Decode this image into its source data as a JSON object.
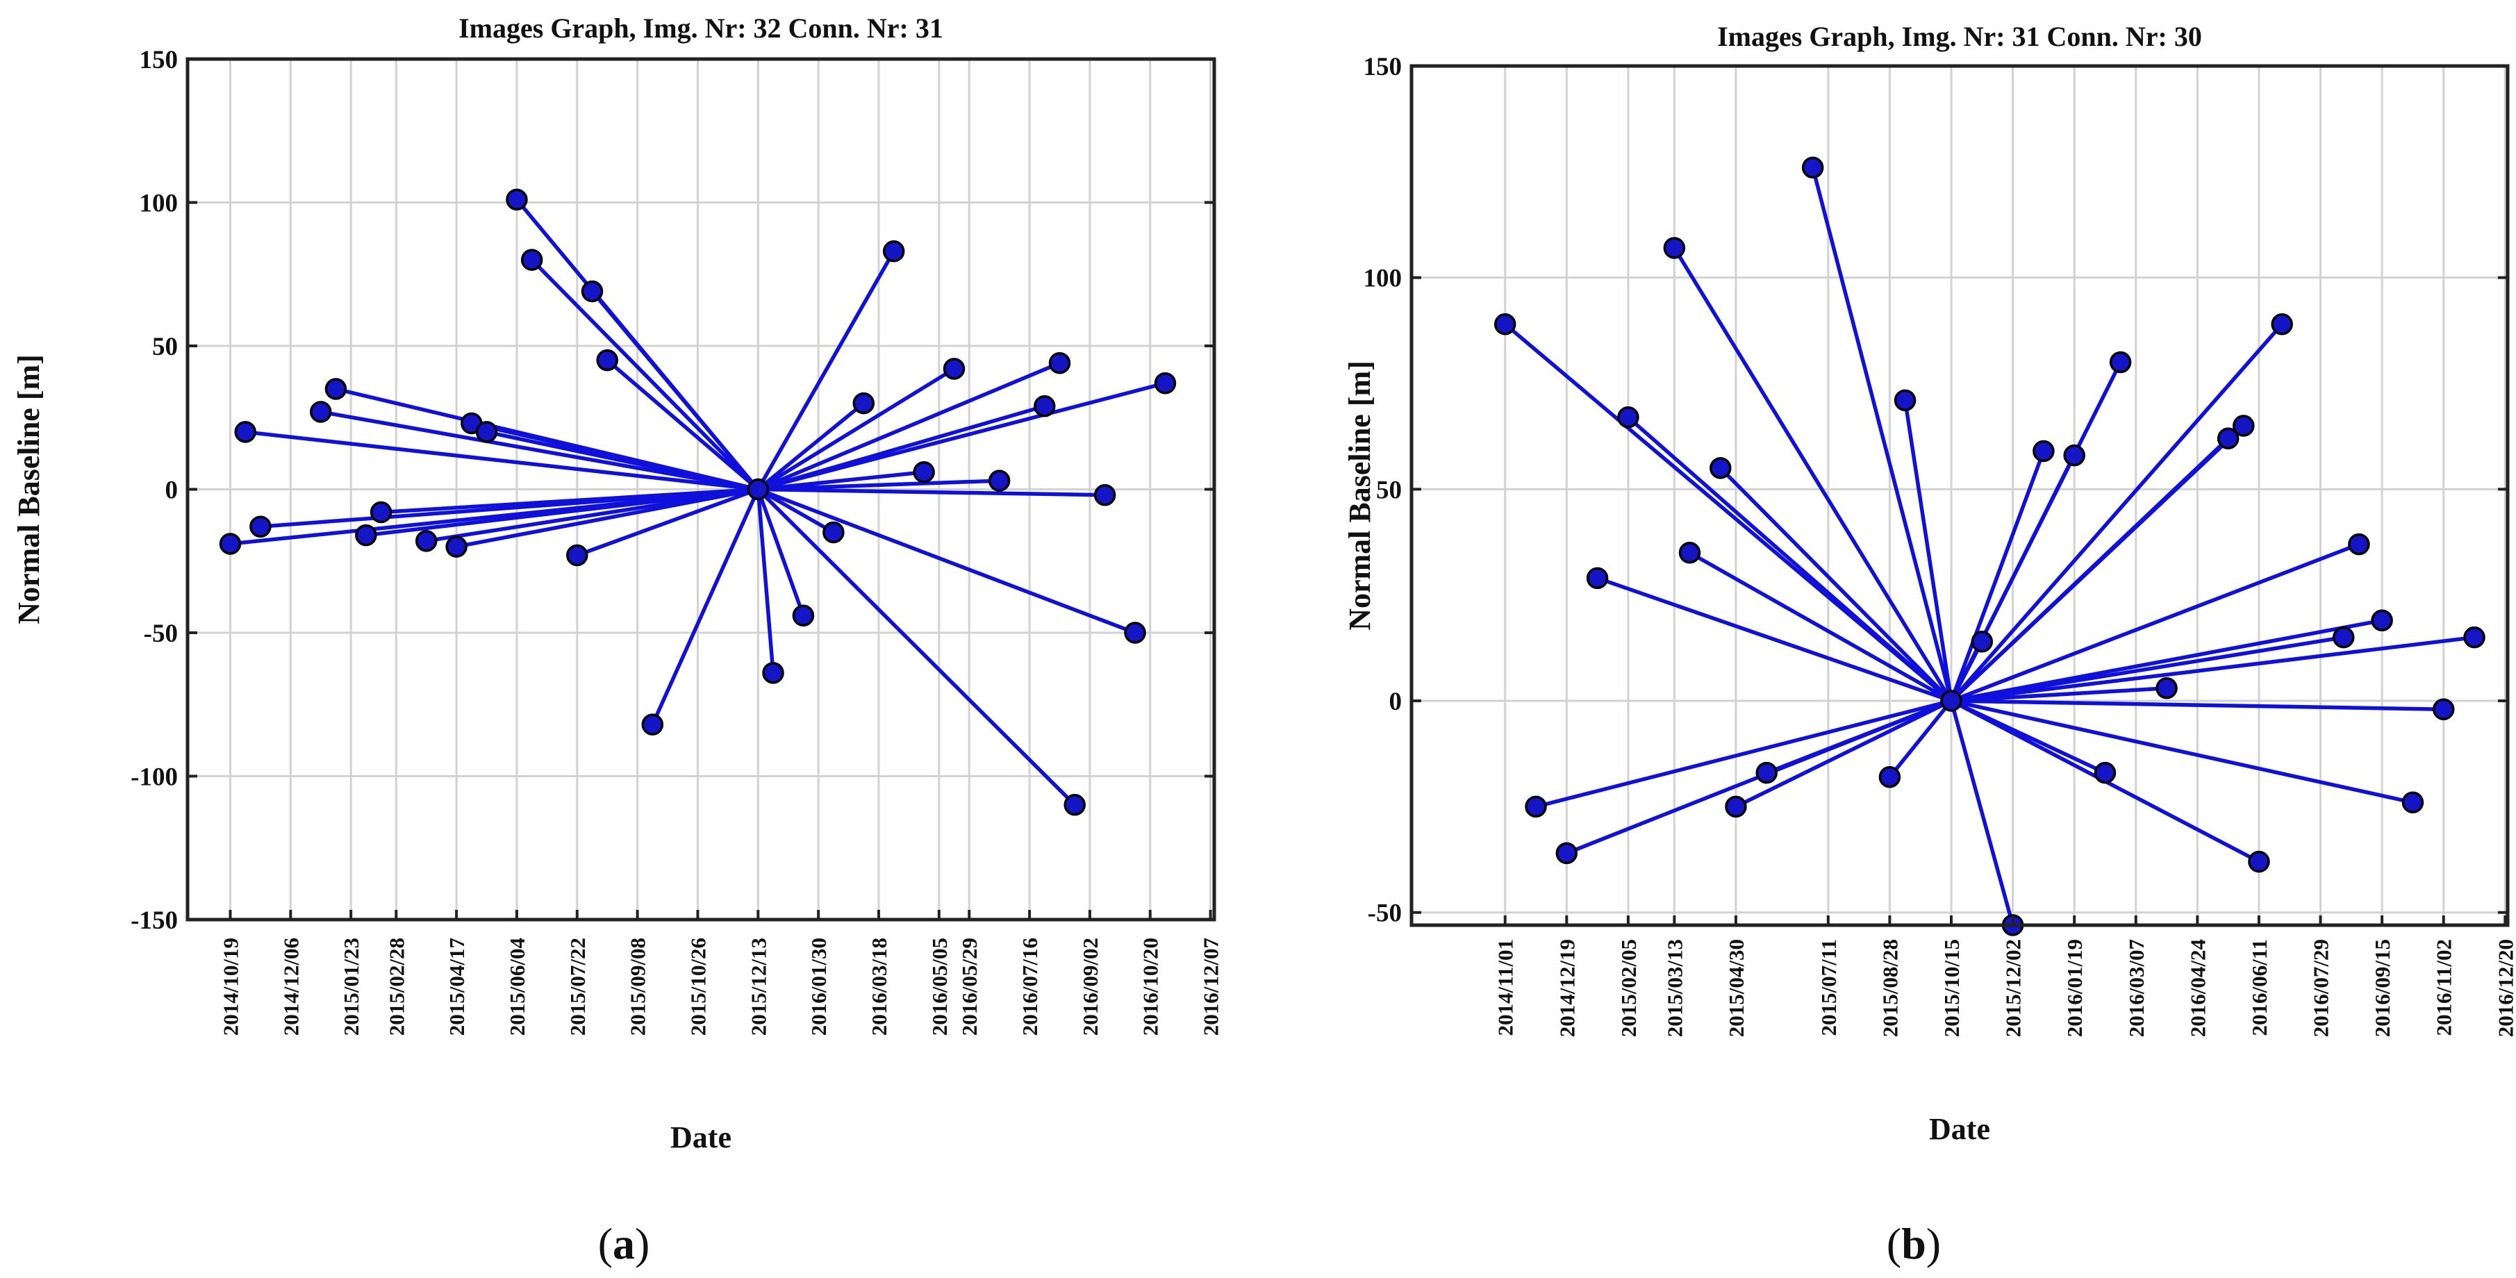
{
  "chart_data": [
    {
      "type": "scatter",
      "subtype": "network-baseline-graph",
      "title": "Images Graph, Img. Nr: 32 Conn. Nr: 31",
      "xlabel": "Date",
      "ylabel": "Normal Baseline [m]",
      "ylim": [
        -150,
        150
      ],
      "yticks": [
        -150,
        -100,
        -50,
        0,
        50,
        100,
        150
      ],
      "xlim": [
        "2014-09-15",
        "2016-12-10"
      ],
      "xticks": [
        "2014/10/19",
        "2014/12/06",
        "2015/01/23",
        "2015/02/28",
        "2015/04/17",
        "2015/06/04",
        "2015/07/22",
        "2015/09/08",
        "2015/10/26",
        "2015/12/13",
        "2016/01/30",
        "2016/03/18",
        "2016/05/05",
        "2016/05/29",
        "2016/07/16",
        "2016/09/02",
        "2016/10/20",
        "2016/12/07"
      ],
      "grid": true,
      "series_color": "#1010dd",
      "marker_color": "#1515c8",
      "hub": {
        "date": "2015-12-13",
        "baseline": 0
      },
      "points": [
        {
          "date": "2014-10-19",
          "baseline": -19
        },
        {
          "date": "2014-10-31",
          "baseline": 20
        },
        {
          "date": "2014-11-12",
          "baseline": -13
        },
        {
          "date": "2014-12-30",
          "baseline": 27
        },
        {
          "date": "2015-01-11",
          "baseline": 35
        },
        {
          "date": "2015-02-04",
          "baseline": -16
        },
        {
          "date": "2015-02-16",
          "baseline": -8
        },
        {
          "date": "2015-03-24",
          "baseline": -18
        },
        {
          "date": "2015-04-17",
          "baseline": -20
        },
        {
          "date": "2015-04-29",
          "baseline": 23
        },
        {
          "date": "2015-05-11",
          "baseline": 20
        },
        {
          "date": "2015-06-04",
          "baseline": 101
        },
        {
          "date": "2015-06-16",
          "baseline": 80
        },
        {
          "date": "2015-07-22",
          "baseline": -23
        },
        {
          "date": "2015-08-03",
          "baseline": 69
        },
        {
          "date": "2015-08-15",
          "baseline": 45
        },
        {
          "date": "2015-09-20",
          "baseline": -82
        },
        {
          "date": "2015-12-25",
          "baseline": -64
        },
        {
          "date": "2016-01-18",
          "baseline": -44
        },
        {
          "date": "2016-02-11",
          "baseline": -15
        },
        {
          "date": "2016-03-06",
          "baseline": 30
        },
        {
          "date": "2016-03-30",
          "baseline": 83
        },
        {
          "date": "2016-04-23",
          "baseline": 6
        },
        {
          "date": "2016-05-17",
          "baseline": 42
        },
        {
          "date": "2016-06-22",
          "baseline": 3
        },
        {
          "date": "2016-07-28",
          "baseline": 29
        },
        {
          "date": "2016-08-09",
          "baseline": 44
        },
        {
          "date": "2016-08-21",
          "baseline": -110
        },
        {
          "date": "2016-09-14",
          "baseline": -2
        },
        {
          "date": "2016-10-08",
          "baseline": -50
        },
        {
          "date": "2016-11-01",
          "baseline": 37
        }
      ]
    },
    {
      "type": "scatter",
      "subtype": "network-baseline-graph",
      "title": "Images Graph, Img. Nr: 31 Conn. Nr: 30",
      "xlabel": "Date",
      "ylabel": "Normal Baseline [m]",
      "ylim": [
        -53,
        150
      ],
      "yticks": [
        -50,
        0,
        50,
        100,
        150
      ],
      "xlim": [
        "2014-08-20",
        "2016-12-22"
      ],
      "xticks": [
        "2014/11/01",
        "2014/12/19",
        "2015/02/05",
        "2015/03/13",
        "2015/04/30",
        "2015/07/11",
        "2015/08/28",
        "2015/10/15",
        "2015/12/02",
        "2016/01/19",
        "2016/03/07",
        "2016/04/24",
        "2016/06/11",
        "2016/07/29",
        "2016/09/15",
        "2016/11/02",
        "2016/12/20"
      ],
      "grid": true,
      "series_color": "#1010dd",
      "marker_color": "#1515c8",
      "hub": {
        "date": "2015-10-15",
        "baseline": 0
      },
      "points": [
        {
          "date": "2014-11-01",
          "baseline": 89
        },
        {
          "date": "2014-11-25",
          "baseline": -25
        },
        {
          "date": "2014-12-19",
          "baseline": -36
        },
        {
          "date": "2015-01-12",
          "baseline": 29
        },
        {
          "date": "2015-02-05",
          "baseline": 67
        },
        {
          "date": "2015-03-13",
          "baseline": 107
        },
        {
          "date": "2015-03-25",
          "baseline": 35
        },
        {
          "date": "2015-04-18",
          "baseline": 55
        },
        {
          "date": "2015-04-30",
          "baseline": -25
        },
        {
          "date": "2015-05-24",
          "baseline": -17
        },
        {
          "date": "2015-06-29",
          "baseline": 126
        },
        {
          "date": "2015-08-28",
          "baseline": -18
        },
        {
          "date": "2015-09-09",
          "baseline": 71
        },
        {
          "date": "2015-11-08",
          "baseline": 14
        },
        {
          "date": "2015-12-02",
          "baseline": -53
        },
        {
          "date": "2015-12-26",
          "baseline": 59
        },
        {
          "date": "2016-01-19",
          "baseline": 58
        },
        {
          "date": "2016-02-12",
          "baseline": -17
        },
        {
          "date": "2016-02-24",
          "baseline": 80
        },
        {
          "date": "2016-03-31",
          "baseline": 3
        },
        {
          "date": "2016-05-18",
          "baseline": 62
        },
        {
          "date": "2016-05-30",
          "baseline": 65
        },
        {
          "date": "2016-06-11",
          "baseline": -38
        },
        {
          "date": "2016-06-29",
          "baseline": 89
        },
        {
          "date": "2016-08-16",
          "baseline": 15
        },
        {
          "date": "2016-08-28",
          "baseline": 37
        },
        {
          "date": "2016-09-15",
          "baseline": 19
        },
        {
          "date": "2016-10-09",
          "baseline": -24
        },
        {
          "date": "2016-11-02",
          "baseline": -2
        },
        {
          "date": "2016-11-26",
          "baseline": 15
        }
      ]
    }
  ],
  "panel_labels": [
    {
      "open": "(",
      "letter": "a",
      "close": ")"
    },
    {
      "open": "(",
      "letter": "b",
      "close": ")"
    }
  ]
}
